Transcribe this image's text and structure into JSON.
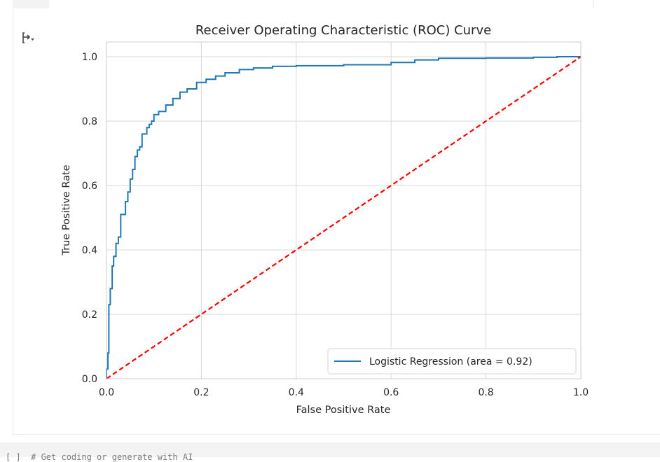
{
  "notebook": {
    "next_cell_snippet": "[ ]  # Get coding or generate with AI"
  },
  "output": {
    "toggle_icon": "output-expand-icon"
  },
  "chart_data": {
    "type": "line",
    "title": "Receiver Operating Characteristic (ROC) Curve",
    "xlabel": "False Positive Rate",
    "ylabel": "True Positive Rate",
    "xlim": [
      0.0,
      1.0
    ],
    "ylim": [
      0.0,
      1.0
    ],
    "xticks": [
      0.0,
      0.2,
      0.4,
      0.6,
      0.8,
      1.0
    ],
    "yticks": [
      0.0,
      0.2,
      0.4,
      0.6,
      0.8,
      1.0
    ],
    "xtick_labels": [
      "0.0",
      "0.2",
      "0.4",
      "0.6",
      "0.8",
      "1.0"
    ],
    "ytick_labels": [
      "0.0",
      "0.2",
      "0.4",
      "0.6",
      "0.8",
      "1.0"
    ],
    "grid": true,
    "legend_position": "lower-right",
    "series": [
      {
        "name": "Logistic Regression (area = 0.92)",
        "color": "#1f77b4",
        "style": "solid",
        "x": [
          0.0,
          0.0,
          0.003,
          0.005,
          0.005,
          0.008,
          0.012,
          0.015,
          0.02,
          0.025,
          0.03,
          0.04,
          0.045,
          0.05,
          0.055,
          0.06,
          0.065,
          0.07,
          0.075,
          0.085,
          0.09,
          0.095,
          0.1,
          0.11,
          0.125,
          0.14,
          0.155,
          0.17,
          0.19,
          0.21,
          0.23,
          0.25,
          0.28,
          0.31,
          0.35,
          0.4,
          0.5,
          0.6,
          0.65,
          0.7,
          0.8,
          0.9,
          0.95,
          1.0
        ],
        "y": [
          0.0,
          0.03,
          0.08,
          0.15,
          0.23,
          0.28,
          0.35,
          0.38,
          0.42,
          0.44,
          0.51,
          0.55,
          0.58,
          0.62,
          0.65,
          0.69,
          0.71,
          0.72,
          0.76,
          0.78,
          0.79,
          0.8,
          0.82,
          0.83,
          0.85,
          0.87,
          0.89,
          0.9,
          0.92,
          0.93,
          0.94,
          0.95,
          0.96,
          0.965,
          0.97,
          0.972,
          0.975,
          0.982,
          0.99,
          0.995,
          0.996,
          0.998,
          1.0,
          1.0
        ]
      },
      {
        "name": "",
        "color": "#ff0000",
        "style": "dashed",
        "x": [
          0.0,
          1.0
        ],
        "y": [
          0.0,
          1.0
        ]
      }
    ]
  }
}
